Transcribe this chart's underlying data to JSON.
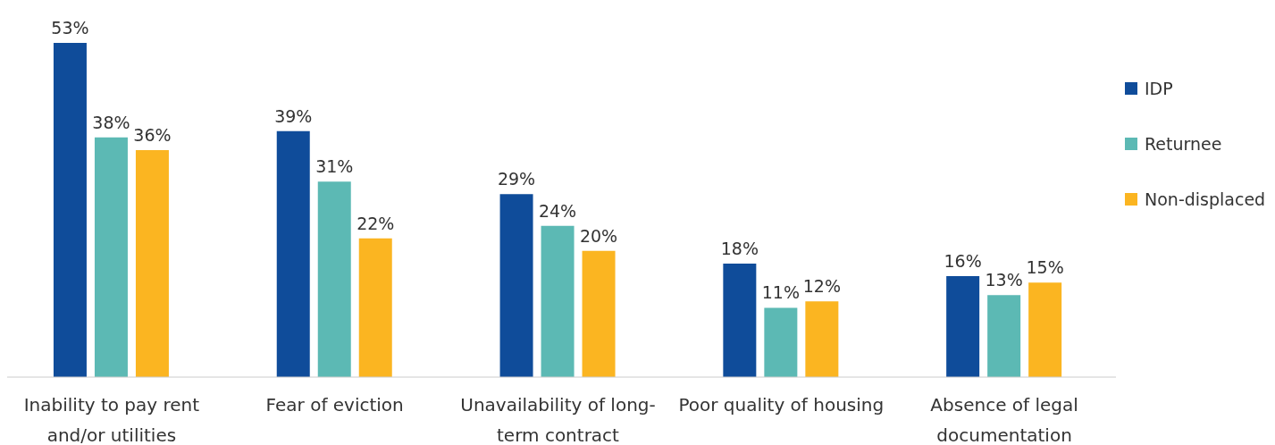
{
  "chart_data": {
    "type": "bar",
    "categories": [
      "Inability to pay rent and/or utilities",
      "Fear of eviction",
      "Unavailability of long-term contract",
      "Poor quality of housing",
      "Absence of legal documentation"
    ],
    "series": [
      {
        "name": "IDP",
        "color": "#0f4c9a",
        "values": [
          53,
          39,
          29,
          18,
          16
        ],
        "value_labels": [
          "53%",
          "39%",
          "29%",
          "18%",
          "16%"
        ]
      },
      {
        "name": "Returnee",
        "color": "#5cb9b4",
        "values": [
          38,
          31,
          24,
          11,
          13
        ],
        "value_labels": [
          "38%",
          "31%",
          "24%",
          "11%",
          "13%"
        ]
      },
      {
        "name": "Non-displaced",
        "color": "#fbb521",
        "values": [
          36,
          22,
          20,
          12,
          15
        ],
        "value_labels": [
          "36%",
          "22%",
          "20%",
          "12%",
          "15%"
        ]
      }
    ],
    "legend": "top right"
  }
}
